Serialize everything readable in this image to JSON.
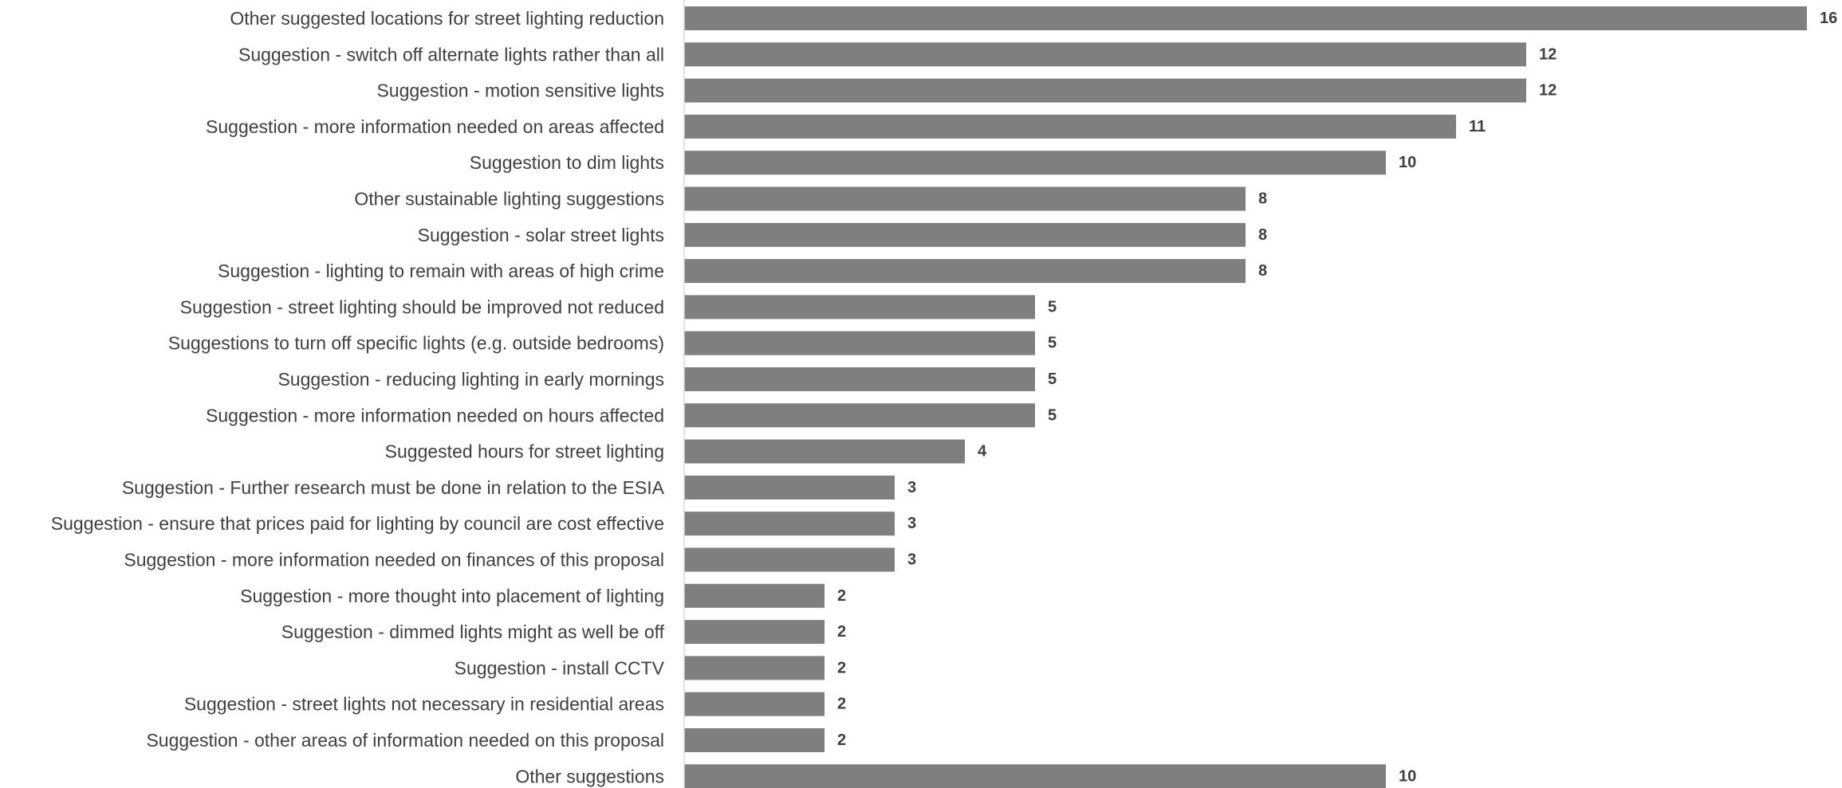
{
  "chart_data": {
    "type": "bar",
    "orientation": "horizontal",
    "title": "",
    "xlabel": "",
    "ylabel": "",
    "xlim": [
      0,
      16
    ],
    "grid": false,
    "legend": "none",
    "data_labels": true,
    "bar_color": "#7f7f7f",
    "text_color": "#3f3f3f",
    "axis_color": "#d9d9d9",
    "categories": [
      "Other suggested locations for street lighting reduction",
      "Suggestion - switch off alternate lights rather than all",
      "Suggestion - motion sensitive lights",
      "Suggestion - more information needed on areas affected",
      "Suggestion to dim lights ",
      "Other sustainable lighting suggestions",
      "Suggestion - solar street lights",
      "Suggestion - lighting to remain with areas of high crime",
      "Suggestion - street lighting should be improved not reduced",
      "Suggestions to turn off specific lights (e.g. outside bedrooms)",
      "Suggestion - reducing lighting in early mornings",
      "Suggestion - more information needed on hours affected",
      "Suggested hours for street lighting",
      "Suggestion - Further research must be done in relation to the ESIA",
      "Suggestion - ensure that prices paid for lighting by council are cost effective",
      "Suggestion - more information needed on finances of this proposal",
      "Suggestion - more thought into placement of lighting",
      "Suggestion - dimmed lights might as well be off",
      "Suggestion - install CCTV",
      "Suggestion - street lights not necessary in residential areas",
      "Suggestion - other areas of information needed on this proposal",
      "Other suggestions"
    ],
    "values": [
      16,
      12,
      12,
      11,
      10,
      8,
      8,
      8,
      5,
      5,
      5,
      5,
      4,
      3,
      3,
      3,
      2,
      2,
      2,
      2,
      2,
      10
    ]
  }
}
